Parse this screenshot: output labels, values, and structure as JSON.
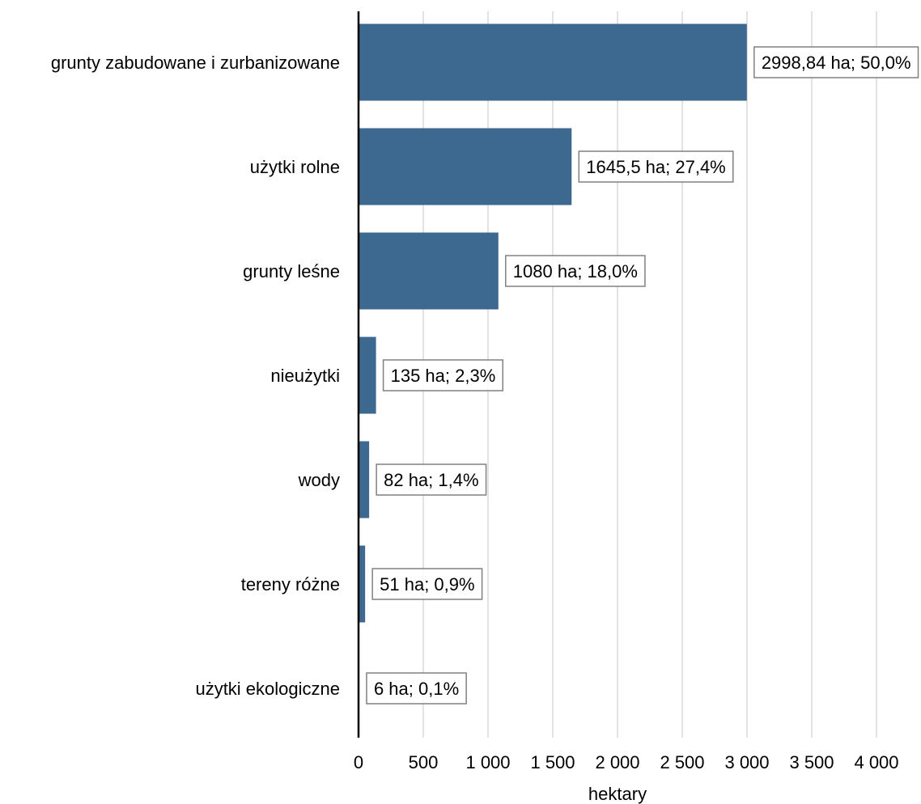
{
  "chart_data": {
    "type": "bar",
    "orientation": "horizontal",
    "categories": [
      "grunty zabudowane i zurbanizowane",
      "użytki rolne",
      "grunty leśne",
      "nieużytki",
      "wody",
      "tereny różne",
      "użytki ekologiczne"
    ],
    "values": [
      2998.84,
      1645.5,
      1080,
      135,
      82,
      51,
      6
    ],
    "data_labels": [
      "2998,84 ha; 50,0%",
      "1645,5 ha; 27,4%",
      "1080 ha; 18,0%",
      "135 ha; 2,3%",
      "82 ha; 1,4%",
      "51 ha; 0,9%",
      "6 ha; 0,1%"
    ],
    "xlim": [
      0,
      4000
    ],
    "x_ticks": [
      0,
      500,
      1000,
      1500,
      2000,
      2500,
      3000,
      3500,
      4000
    ],
    "x_tick_labels": [
      "0",
      "500",
      "1 000",
      "1 500",
      "2 000",
      "2 500",
      "3 000",
      "3 500",
      "4 000"
    ],
    "xlabel": "hektary",
    "ylabel": "",
    "title": "",
    "grid": "vertical",
    "legend": "none",
    "bar_color": "#3d6890",
    "grid_color": "#d9d9d9",
    "label_border_color": "#808080"
  }
}
